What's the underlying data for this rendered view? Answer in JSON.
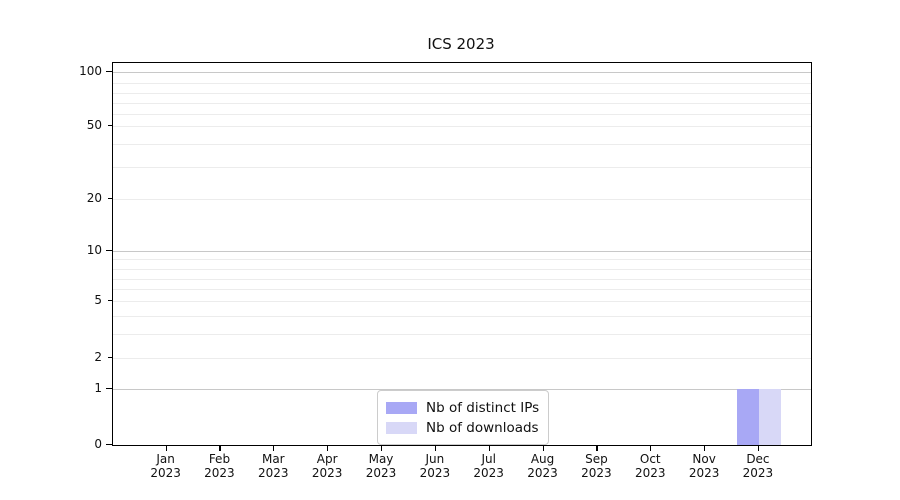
{
  "chart_data": {
    "type": "bar",
    "title": "ICS 2023",
    "xlabel": "",
    "ylabel": "",
    "yscale": "symlog (linear 0-1, log 1-100)",
    "ylim": [
      0,
      115
    ],
    "grid": "horizontal major (1,10,100) + minor log lines, light gray",
    "legend_position": "lower center, inside axes",
    "ytick_labels": [
      "0",
      "1",
      "2",
      "5",
      "10",
      "20",
      "50",
      "100"
    ],
    "categories": [
      {
        "month": "Jan",
        "year": "2023"
      },
      {
        "month": "Feb",
        "year": "2023"
      },
      {
        "month": "Mar",
        "year": "2023"
      },
      {
        "month": "Apr",
        "year": "2023"
      },
      {
        "month": "May",
        "year": "2023"
      },
      {
        "month": "Jun",
        "year": "2023"
      },
      {
        "month": "Jul",
        "year": "2023"
      },
      {
        "month": "Aug",
        "year": "2023"
      },
      {
        "month": "Sep",
        "year": "2023"
      },
      {
        "month": "Oct",
        "year": "2023"
      },
      {
        "month": "Nov",
        "year": "2023"
      },
      {
        "month": "Dec",
        "year": "2023"
      }
    ],
    "series": [
      {
        "name": "Nb of distinct IPs",
        "color": "#a8a8f5",
        "values": [
          0,
          0,
          0,
          0,
          0,
          0,
          0,
          0,
          0,
          0,
          0,
          1
        ]
      },
      {
        "name": "Nb of downloads",
        "color": "#d8d8f7",
        "values": [
          0,
          0,
          0,
          0,
          0,
          0,
          0,
          0,
          0,
          0,
          0,
          1
        ]
      }
    ]
  },
  "colors": {
    "background": "#ffffff",
    "spine": "#000000",
    "grid_major": "#c8c8c8",
    "grid_minor": "#ececec",
    "text": "#111111",
    "legend_border": "#cccccc",
    "series_1": "#a8a8f5",
    "series_2": "#d8d8f7"
  }
}
